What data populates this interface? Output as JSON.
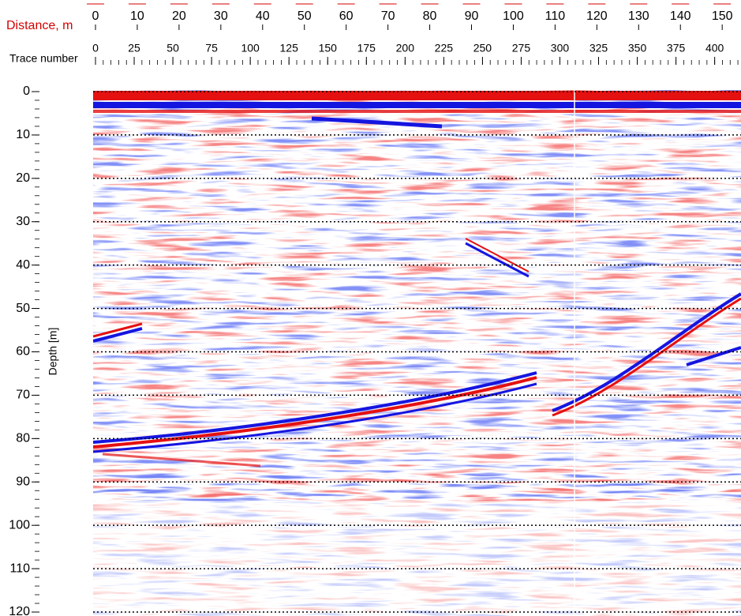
{
  "chart_data": {
    "type": "radargram",
    "xlabel": "Distance, m",
    "x2label": "Trace number",
    "ylabel": "Depth [m]",
    "xlim": [
      0,
      154.5
    ],
    "xticks": [
      0,
      10,
      20,
      30,
      40,
      50,
      60,
      70,
      80,
      90,
      100,
      110,
      120,
      130,
      140,
      150
    ],
    "x2lim": [
      0,
      417
    ],
    "x2ticks": [
      0,
      25,
      50,
      75,
      100,
      125,
      150,
      175,
      200,
      225,
      250,
      275,
      300,
      325,
      350,
      375,
      400
    ],
    "ylim": [
      0,
      120
    ],
    "yticks": [
      0,
      10,
      20,
      30,
      40,
      50,
      60,
      70,
      80,
      90,
      100,
      110,
      120
    ],
    "grid": true,
    "xaxis_color": "#d40000"
  }
}
